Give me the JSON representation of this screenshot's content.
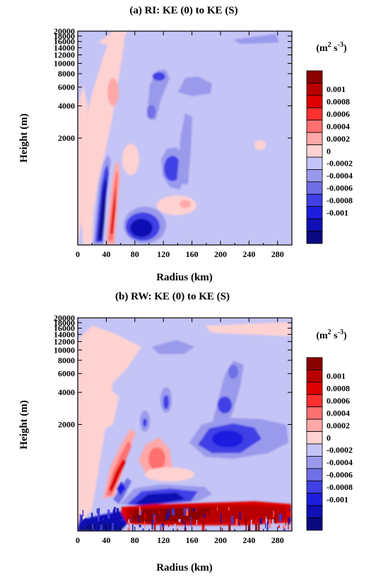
{
  "panels": [
    {
      "title": "(a)  RI: KE (0) to KE (S)",
      "xlabel": "Radius (km)",
      "ylabel": "Height (m)",
      "unit_text": "(m",
      "unit_sup": "2",
      "unit_text2": " s",
      "unit_sup2": "-3",
      "unit_close": ")"
    },
    {
      "title": "(b)  RW: KE (0) to KE (S)",
      "xlabel": "Radius (km)",
      "ylabel": "Height (m)",
      "unit_text": "(m",
      "unit_sup": "2",
      "unit_text2": " s",
      "unit_sup2": "-3",
      "unit_close": ")"
    }
  ],
  "chart_data": [
    {
      "type": "heatmap",
      "title": "(a)  RI: KE (0) to KE (S)",
      "xlabel": "Radius (km)",
      "ylabel": "Height (m)",
      "xlim": [
        0,
        300
      ],
      "ylim": [
        200,
        20000
      ],
      "yscale": "log",
      "xticks": [
        "0",
        "40",
        "80",
        "120",
        "160",
        "200",
        "240",
        "280"
      ],
      "yticks": [
        "2000",
        "4000",
        "6000",
        "8000",
        "10000",
        "12000",
        "14000",
        "16000",
        "18000",
        "20000"
      ],
      "colorbar": {
        "labels": [
          "0.001",
          "0.0008",
          "0.0006",
          "0.0004",
          "0.0002",
          "0",
          "-0.0002",
          "-0.0004",
          "-0.0006",
          "-0.0008",
          "-0.001"
        ],
        "colors": [
          "#8b0000",
          "#b80000",
          "#e00000",
          "#ff3030",
          "#ff7070",
          "#ffa8a8",
          "#ffd2d2",
          "#c4c4f6",
          "#9a9aec",
          "#6f6fe6",
          "#4040e6",
          "#1e1ee0",
          "#1010b4",
          "#0a0a80"
        ],
        "background_color": "#c4c4f6"
      },
      "features": [
        {
          "x": 37,
          "y": 900,
          "value": -0.001
        },
        {
          "x": 48,
          "y": 1300,
          "value": 0.0008
        },
        {
          "x": 56,
          "y": 3000,
          "value": 0.0006
        },
        {
          "x": 95,
          "y": 650,
          "value": -0.0008
        },
        {
          "x": 128,
          "y": 3300,
          "value": -0.0005
        },
        {
          "x": 78,
          "y": 2500,
          "value": 0.0002
        },
        {
          "x": 120,
          "y": 12000,
          "value": -0.0004
        },
        {
          "x": 100,
          "y": 8500,
          "value": -0.0003
        },
        {
          "x": 165,
          "y": 4700,
          "value": -0.0002
        },
        {
          "x": 270,
          "y": 19000,
          "value": -0.0002
        },
        {
          "x": 65,
          "y": 10500,
          "value": 0.0004
        },
        {
          "x": 20,
          "y": 18000,
          "value": 0.0002
        },
        {
          "x": 137,
          "y": 1500,
          "value": 0.0002
        }
      ]
    },
    {
      "type": "heatmap",
      "title": "(b)  RW: KE (0) to KE (S)",
      "xlabel": "Radius (km)",
      "ylabel": "Height (m)",
      "xlim": [
        0,
        300
      ],
      "ylim": [
        200,
        20000
      ],
      "yscale": "log",
      "xticks": [
        "0",
        "40",
        "80",
        "120",
        "160",
        "200",
        "240",
        "280"
      ],
      "yticks": [
        "2000",
        "4000",
        "6000",
        "8000",
        "10000",
        "12000",
        "14000",
        "16000",
        "18000",
        "20000"
      ],
      "colorbar": {
        "labels": [
          "0.001",
          "0.0008",
          "0.0006",
          "0.0004",
          "0.0002",
          "0",
          "-0.0002",
          "-0.0004",
          "-0.0006",
          "-0.0008",
          "-0.001"
        ],
        "colors": [
          "#8b0000",
          "#b80000",
          "#e00000",
          "#ff3030",
          "#ff7070",
          "#ffa8a8",
          "#ffd2d2",
          "#c4c4f6",
          "#9a9aec",
          "#6f6fe6",
          "#4040e6",
          "#1e1ee0",
          "#1010b4",
          "#0a0a80"
        ],
        "background_color": "#c4c4f6"
      },
      "features": [
        {
          "x": 175,
          "y": 330,
          "value": 0.001
        },
        {
          "x": 120,
          "y": 1000,
          "value": -0.0008
        },
        {
          "x": 210,
          "y": 4300,
          "value": -0.0005
        },
        {
          "x": 200,
          "y": 7000,
          "value": -0.0004
        },
        {
          "x": 113,
          "y": 3500,
          "value": 0.0004
        },
        {
          "x": 48,
          "y": 2200,
          "value": 0.0006
        },
        {
          "x": 62,
          "y": 1500,
          "value": -0.0004
        },
        {
          "x": 128,
          "y": 6500,
          "value": -0.0004
        },
        {
          "x": 90,
          "y": 6000,
          "value": -0.0004
        },
        {
          "x": 20,
          "y": 270,
          "value": -0.0006
        },
        {
          "x": 160,
          "y": 15000,
          "value": -0.0002
        },
        {
          "x": 60,
          "y": 10000,
          "value": 0.0002
        },
        {
          "x": 165,
          "y": 2800,
          "value": -0.0002
        }
      ]
    }
  ]
}
